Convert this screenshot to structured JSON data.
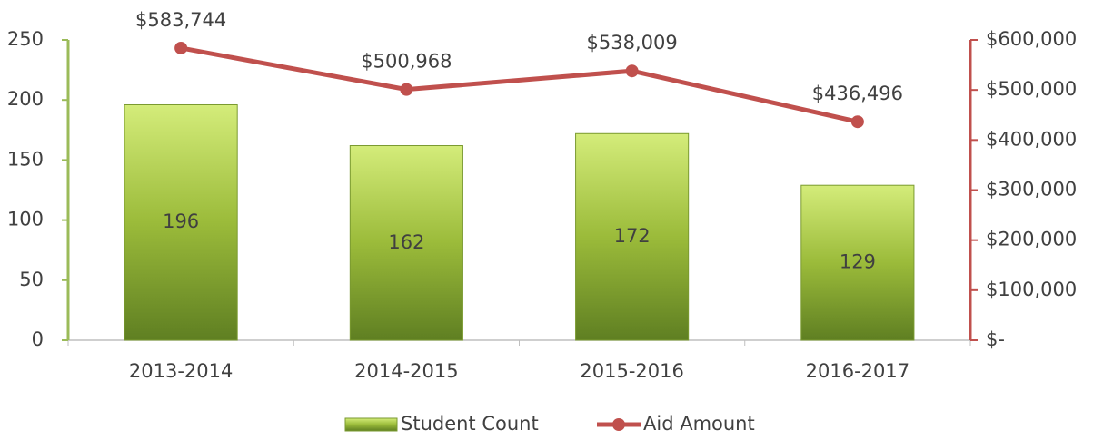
{
  "chart_data": {
    "type": "bar",
    "categories": [
      "2013-2014",
      "2014-2015",
      "2015-2016",
      "2016-2017"
    ],
    "series": [
      {
        "name": "Student Count",
        "color": "#9bbb59",
        "values": [
          196,
          162,
          172,
          129
        ]
      },
      {
        "name": "Aid Amount",
        "type": "line",
        "axis": "y2",
        "color": "#c0504d",
        "values": [
          583744,
          500968,
          538009,
          436496
        ],
        "value_labels": [
          "$583,744",
          "$500,968",
          "$538,009",
          "$436,496"
        ]
      }
    ],
    "ylim": [
      0,
      250
    ],
    "yticks": [
      0,
      50,
      100,
      150,
      200,
      250
    ],
    "y2lim": [
      0,
      600000
    ],
    "y2ticks": [
      {
        "value": 0,
        "label": "$-"
      },
      {
        "value": 100000,
        "label": "$100,000"
      },
      {
        "value": 200000,
        "label": "$200,000"
      },
      {
        "value": 300000,
        "label": "$300,000"
      },
      {
        "value": 400000,
        "label": "$400,000"
      },
      {
        "value": 500000,
        "label": "$500,000"
      },
      {
        "value": 600000,
        "label": "$600,000"
      }
    ],
    "legend": "bottom"
  }
}
